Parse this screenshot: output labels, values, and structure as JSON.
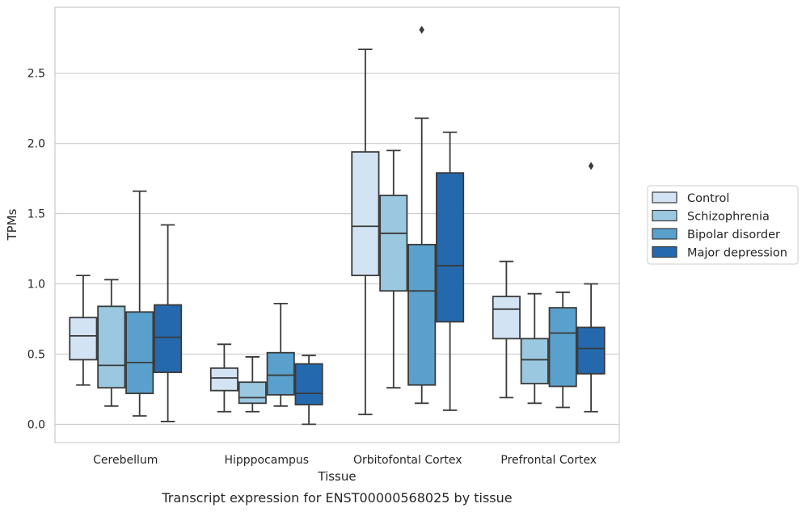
{
  "chart_data": {
    "type": "box",
    "xlabel": "Tissue",
    "ylabel": "TPMs",
    "caption": "Transcript expression for ENST00000568025 by tissue",
    "ylim": [
      -0.13,
      2.97
    ],
    "yticks": [
      0.0,
      0.5,
      1.0,
      1.5,
      2.0,
      2.5
    ],
    "ytick_labels": [
      "0.0",
      "0.5",
      "1.0",
      "1.5",
      "2.0",
      "2.5"
    ],
    "grid": "horizontal",
    "legend_position": "right",
    "categories": [
      "Cerebellum",
      "Hipppocampus",
      "Orbitofontal Cortex",
      "Prefrontal Cortex"
    ],
    "series": [
      {
        "name": "Control",
        "color": "#d2e3f3",
        "boxes": [
          {
            "whislo": 0.28,
            "q1": 0.46,
            "med": 0.63,
            "q3": 0.76,
            "whishi": 1.06,
            "fliers": []
          },
          {
            "whislo": 0.09,
            "q1": 0.24,
            "med": 0.33,
            "q3": 0.4,
            "whishi": 0.57,
            "fliers": []
          },
          {
            "whislo": 0.07,
            "q1": 1.06,
            "med": 1.41,
            "q3": 1.94,
            "whishi": 2.67,
            "fliers": []
          },
          {
            "whislo": 0.19,
            "q1": 0.61,
            "med": 0.82,
            "q3": 0.91,
            "whishi": 1.16,
            "fliers": []
          }
        ]
      },
      {
        "name": "Schizophrenia",
        "color": "#9ac8e0",
        "boxes": [
          {
            "whislo": 0.13,
            "q1": 0.26,
            "med": 0.42,
            "q3": 0.84,
            "whishi": 1.03,
            "fliers": []
          },
          {
            "whislo": 0.09,
            "q1": 0.15,
            "med": 0.19,
            "q3": 0.3,
            "whishi": 0.48,
            "fliers": []
          },
          {
            "whislo": 0.26,
            "q1": 0.95,
            "med": 1.36,
            "q3": 1.63,
            "whishi": 1.95,
            "fliers": []
          },
          {
            "whislo": 0.15,
            "q1": 0.29,
            "med": 0.46,
            "q3": 0.61,
            "whishi": 0.93,
            "fliers": []
          }
        ]
      },
      {
        "name": "Bipolar disorder",
        "color": "#5aa0cd",
        "boxes": [
          {
            "whislo": 0.06,
            "q1": 0.22,
            "med": 0.44,
            "q3": 0.8,
            "whishi": 1.66,
            "fliers": []
          },
          {
            "whislo": 0.13,
            "q1": 0.21,
            "med": 0.35,
            "q3": 0.51,
            "whishi": 0.86,
            "fliers": []
          },
          {
            "whislo": 0.15,
            "q1": 0.28,
            "med": 0.95,
            "q3": 1.28,
            "whishi": 2.18,
            "fliers": [
              2.81
            ]
          },
          {
            "whislo": 0.12,
            "q1": 0.27,
            "med": 0.65,
            "q3": 0.83,
            "whishi": 0.94,
            "fliers": []
          }
        ]
      },
      {
        "name": "Major depression",
        "color": "#2469ae",
        "boxes": [
          {
            "whislo": 0.02,
            "q1": 0.37,
            "med": 0.62,
            "q3": 0.85,
            "whishi": 1.42,
            "fliers": []
          },
          {
            "whislo": 0.0,
            "q1": 0.14,
            "med": 0.22,
            "q3": 0.43,
            "whishi": 0.49,
            "fliers": []
          },
          {
            "whislo": 0.1,
            "q1": 0.73,
            "med": 1.13,
            "q3": 1.79,
            "whishi": 2.08,
            "fliers": []
          },
          {
            "whislo": 0.09,
            "q1": 0.36,
            "med": 0.54,
            "q3": 0.69,
            "whishi": 1.0,
            "fliers": [
              1.84
            ]
          }
        ]
      }
    ]
  }
}
